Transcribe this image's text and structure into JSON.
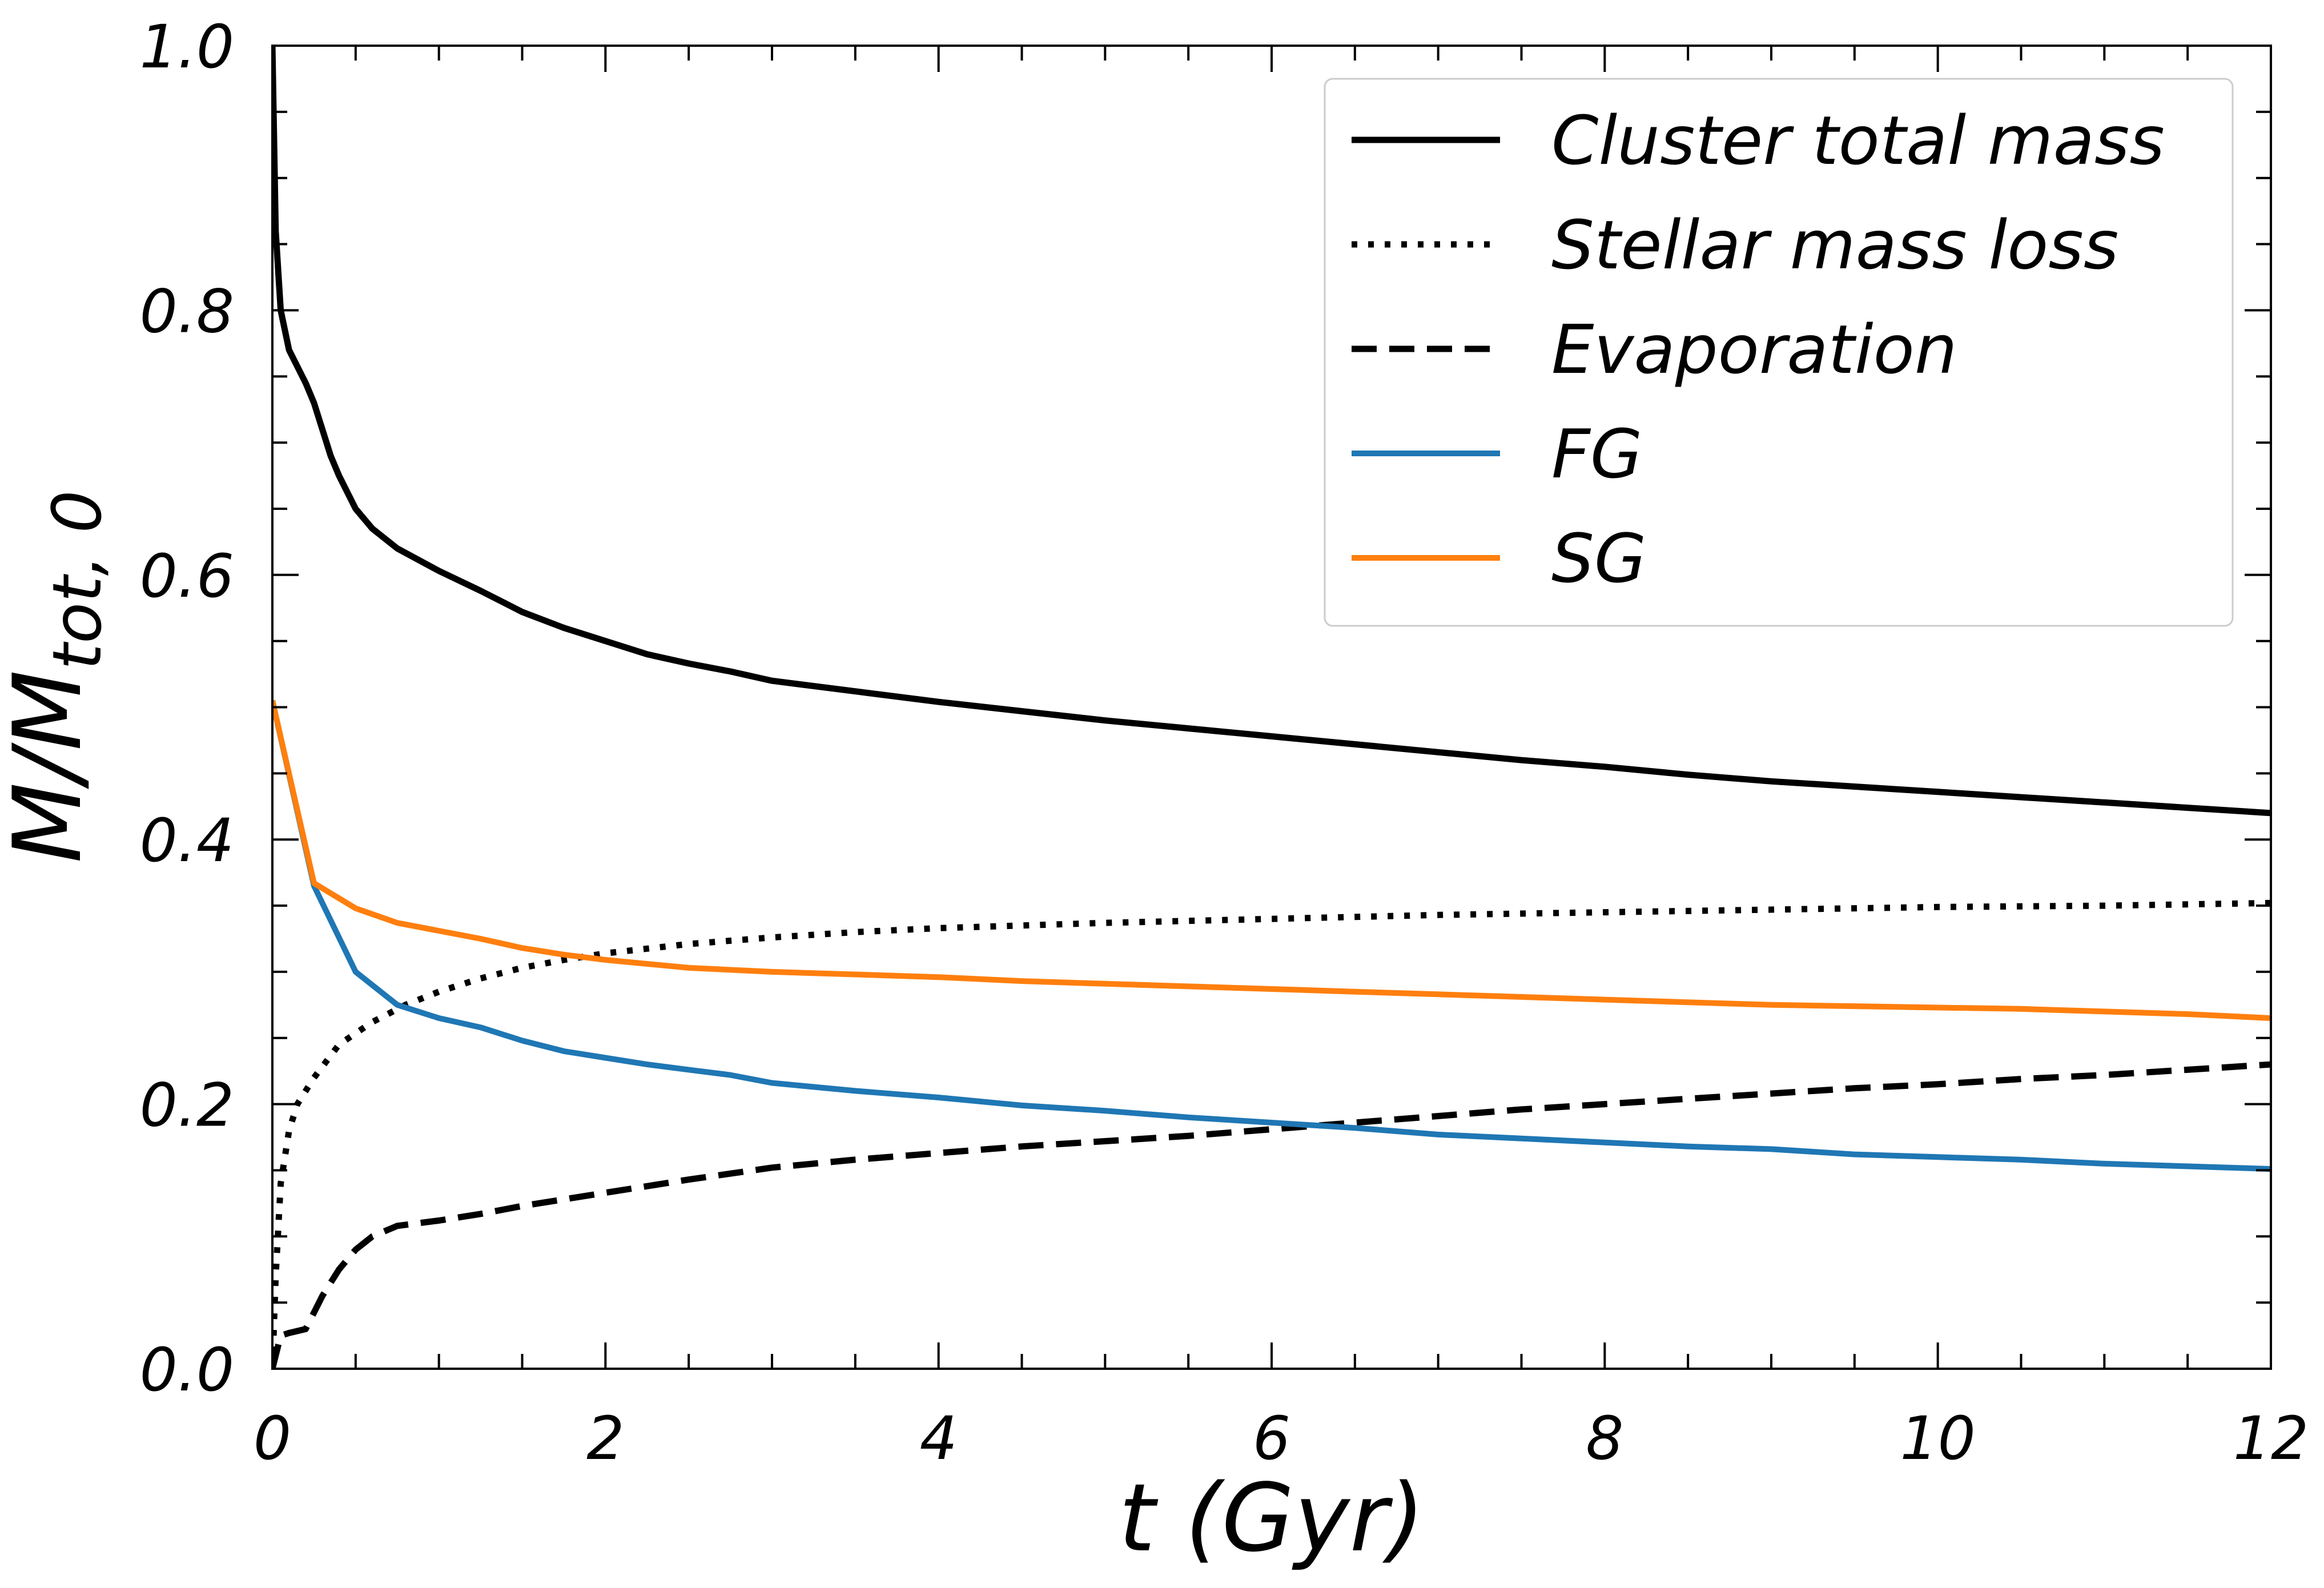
{
  "chart_data": {
    "type": "line",
    "title": "",
    "xlabel": "t (Gyr)",
    "ylabel": {
      "main": "M/M",
      "sub": "tot, 0"
    },
    "xlim": [
      0,
      12
    ],
    "ylim": [
      0,
      1
    ],
    "xticks": [
      "0",
      "2",
      "4",
      "6",
      "8",
      "10",
      "12"
    ],
    "yticks": [
      "0.0",
      "0.2",
      "0.4",
      "0.6",
      "0.8",
      "1.0"
    ],
    "grid": false,
    "legend_position": "top-right",
    "series": [
      {
        "name": "Cluster total mass",
        "color": "#000000",
        "style": "solid",
        "x": [
          0,
          0.02,
          0.05,
          0.1,
          0.2,
          0.25,
          0.3,
          0.35,
          0.4,
          0.5,
          0.6,
          0.75,
          1.0,
          1.25,
          1.5,
          1.75,
          2.0,
          2.25,
          2.5,
          2.75,
          3.0,
          3.5,
          4.0,
          4.5,
          5.0,
          5.5,
          6.0,
          6.5,
          7.0,
          7.5,
          8.0,
          8.5,
          9.0,
          9.5,
          10.0,
          10.5,
          11.0,
          11.5,
          12.0
        ],
        "y": [
          1.0,
          0.86,
          0.8,
          0.77,
          0.745,
          0.73,
          0.71,
          0.69,
          0.675,
          0.65,
          0.635,
          0.62,
          0.603,
          0.588,
          0.572,
          0.56,
          0.55,
          0.54,
          0.533,
          0.527,
          0.52,
          0.512,
          0.504,
          0.497,
          0.49,
          0.484,
          0.478,
          0.472,
          0.466,
          0.46,
          0.455,
          0.449,
          0.444,
          0.44,
          0.436,
          0.432,
          0.428,
          0.424,
          0.42
        ]
      },
      {
        "name": "Stellar mass loss",
        "color": "#000000",
        "style": "dotted",
        "x": [
          0,
          0.02,
          0.05,
          0.1,
          0.15,
          0.25,
          0.4,
          0.6,
          0.8,
          1.0,
          1.25,
          1.5,
          1.75,
          2.0,
          2.5,
          3.0,
          3.5,
          4.0,
          5.0,
          6.0,
          7.0,
          8.0,
          9.0,
          10.0,
          11.0,
          12.0
        ],
        "y": [
          0.0,
          0.07,
          0.14,
          0.18,
          0.2,
          0.22,
          0.245,
          0.262,
          0.275,
          0.285,
          0.295,
          0.303,
          0.309,
          0.314,
          0.321,
          0.326,
          0.33,
          0.333,
          0.337,
          0.34,
          0.343,
          0.345,
          0.347,
          0.349,
          0.35,
          0.352
        ]
      },
      {
        "name": "Evaporation",
        "color": "#000000",
        "style": "dashed",
        "x": [
          0,
          0.02,
          0.05,
          0.1,
          0.2,
          0.3,
          0.4,
          0.5,
          0.6,
          0.75,
          1.0,
          1.25,
          1.5,
          1.75,
          2.0,
          2.25,
          2.5,
          3.0,
          3.5,
          4.0,
          4.5,
          5.0,
          5.5,
          6.0,
          6.5,
          7.0,
          7.5,
          8.0,
          8.5,
          9.0,
          9.5,
          10.0,
          10.5,
          11.0,
          11.5,
          12.0
        ],
        "y": [
          0.0,
          0.01,
          0.025,
          0.027,
          0.03,
          0.055,
          0.075,
          0.09,
          0.1,
          0.108,
          0.112,
          0.117,
          0.123,
          0.128,
          0.133,
          0.138,
          0.143,
          0.152,
          0.158,
          0.163,
          0.168,
          0.172,
          0.176,
          0.181,
          0.186,
          0.191,
          0.196,
          0.2,
          0.204,
          0.208,
          0.212,
          0.215,
          0.219,
          0.222,
          0.226,
          0.23
        ]
      },
      {
        "name": "FG",
        "color": "#1f77b4",
        "style": "solid",
        "x": [
          0,
          0.25,
          0.5,
          0.75,
          1.0,
          1.25,
          1.5,
          1.75,
          2.0,
          2.25,
          2.5,
          2.75,
          3.0,
          3.5,
          4.0,
          4.5,
          5.0,
          5.5,
          6.0,
          6.5,
          7.0,
          7.5,
          8.0,
          8.5,
          9.0,
          9.5,
          10.0,
          10.5,
          11.0,
          11.5,
          12.0
        ],
        "y": [
          0.505,
          0.365,
          0.3,
          0.275,
          0.265,
          0.258,
          0.248,
          0.24,
          0.235,
          0.23,
          0.226,
          0.222,
          0.216,
          0.21,
          0.205,
          0.199,
          0.195,
          0.19,
          0.186,
          0.182,
          0.177,
          0.174,
          0.171,
          0.168,
          0.166,
          0.162,
          0.16,
          0.158,
          0.155,
          0.153,
          0.151
        ]
      },
      {
        "name": "SG",
        "color": "#ff7f0e",
        "style": "solid",
        "x": [
          0,
          0.25,
          0.5,
          0.75,
          1.0,
          1.25,
          1.5,
          1.75,
          2.0,
          2.5,
          3.0,
          3.5,
          4.0,
          4.5,
          5.0,
          5.5,
          6.0,
          6.5,
          7.0,
          7.5,
          8.0,
          8.5,
          9.0,
          9.5,
          10.0,
          10.5,
          11.0,
          11.5,
          12.0
        ],
        "y": [
          0.505,
          0.367,
          0.348,
          0.337,
          0.331,
          0.325,
          0.318,
          0.313,
          0.309,
          0.303,
          0.3,
          0.298,
          0.296,
          0.293,
          0.291,
          0.289,
          0.287,
          0.285,
          0.283,
          0.281,
          0.279,
          0.277,
          0.275,
          0.274,
          0.273,
          0.272,
          0.27,
          0.268,
          0.265
        ]
      }
    ]
  }
}
